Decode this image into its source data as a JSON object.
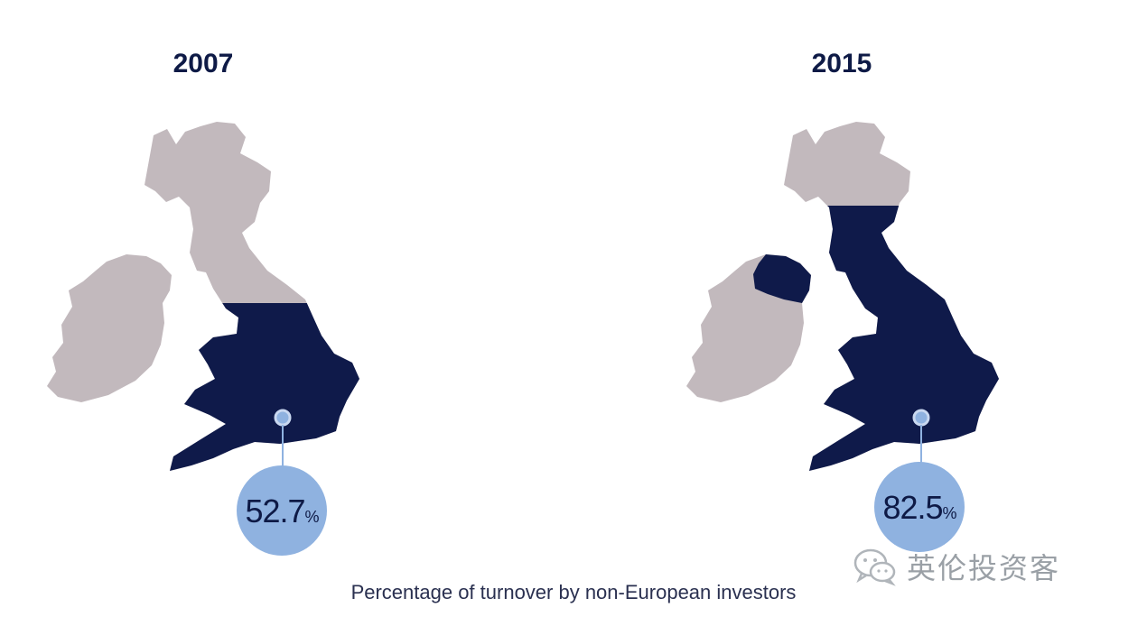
{
  "chart_data": [
    {
      "type": "map",
      "title": "2007",
      "value": 52.7,
      "value_text": "52.7",
      "unit": "%",
      "highlighted_regions": [
        "England",
        "Wales"
      ],
      "colors": {
        "highlight": "#0f1a4a",
        "other": "#c2b9bd",
        "bubble": "#8fb2e0"
      }
    },
    {
      "type": "map",
      "title": "2015",
      "value": 82.5,
      "value_text": "82.5",
      "unit": "%",
      "highlighted_regions": [
        "England",
        "Wales",
        "Northern Ireland",
        "Southern Scotland"
      ],
      "colors": {
        "highlight": "#0f1a4a",
        "other": "#c2b9bd",
        "bubble": "#8fb2e0"
      }
    }
  ],
  "caption": "Percentage of turnover by non-European investors",
  "watermark": {
    "text": "英伦投资客",
    "icon": "wechat-icon"
  }
}
